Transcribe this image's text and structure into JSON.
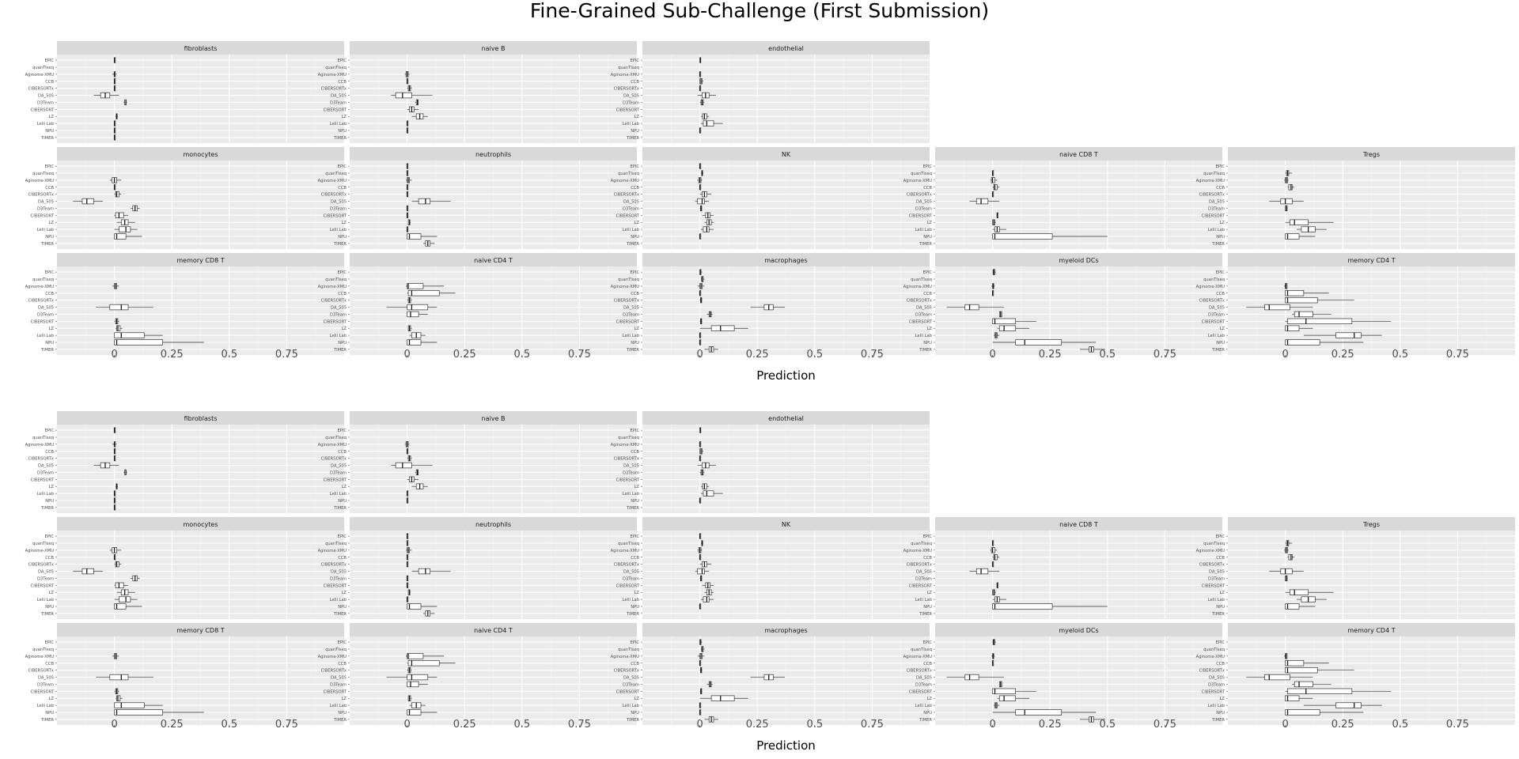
{
  "title": "Fine-Grained Sub-Challenge (First Submission)",
  "chart_data": {
    "type": "boxplot",
    "title": "Fine-Grained Sub-Challenge (First Submission)",
    "xlabel": "Prediction",
    "ylabel": "",
    "x_ticks": [
      0,
      0.25,
      0.5,
      0.75
    ],
    "x_tick_labels": [
      "0",
      "0.25",
      "0.5",
      "0.75"
    ],
    "xlim": [
      -0.25,
      1.0
    ],
    "grid": true,
    "methods": [
      "EPIC",
      "quanTIseq",
      "Aginome-XMU",
      "CCB",
      "CIBERSORTx",
      "DA_505",
      "D3Team",
      "CIBERSORT",
      "LZ",
      "Lelii Lab",
      "NPU",
      "TIMER"
    ],
    "panels": [
      {
        "title": "fibroblasts",
        "row": 0,
        "col": 0,
        "boxes": [
          [
            0,
            0,
            0,
            0,
            0
          ],
          null,
          [
            -0.01,
            0,
            0,
            0,
            0.01
          ],
          [
            0,
            0,
            0,
            0,
            0
          ],
          [
            0,
            0,
            0,
            0,
            0
          ],
          [
            -0.09,
            -0.06,
            -0.04,
            -0.02,
            0.02
          ],
          [
            0.04,
            0.045,
            0.05,
            0.05,
            0.055
          ],
          null,
          [
            0.005,
            0.008,
            0.01,
            0.012,
            0.015
          ],
          [
            0,
            0,
            0,
            0,
            0
          ],
          [
            0,
            0,
            0,
            0,
            0
          ],
          [
            0,
            0,
            0,
            0,
            0
          ]
        ]
      },
      {
        "title": "naive B",
        "row": 0,
        "col": 1,
        "boxes": [
          null,
          null,
          [
            -0.01,
            -0.005,
            0,
            0.005,
            0.01
          ],
          [
            0,
            0,
            0,
            0,
            0
          ],
          [
            0,
            0.005,
            0.01,
            0.015,
            0.02
          ],
          [
            -0.07,
            -0.05,
            -0.02,
            0.02,
            0.11
          ],
          [
            0.035,
            0.04,
            0.045,
            0.048,
            0.05
          ],
          [
            0,
            0.01,
            0.02,
            0.03,
            0.05
          ],
          [
            0.02,
            0.04,
            0.055,
            0.07,
            0.09
          ],
          [
            0,
            0,
            0,
            0,
            0
          ],
          [
            0,
            0,
            0,
            0,
            0
          ],
          null
        ]
      },
      {
        "title": "endothelial",
        "row": 0,
        "col": 2,
        "boxes": [
          [
            0,
            0,
            0.002,
            0.004,
            0.005
          ],
          null,
          [
            0,
            0,
            0,
            0,
            0.005
          ],
          [
            0,
            0,
            0.005,
            0.01,
            0.015
          ],
          [
            0,
            0,
            0,
            0,
            0
          ],
          [
            -0.01,
            0.01,
            0.025,
            0.04,
            0.07
          ],
          [
            0,
            0.005,
            0.01,
            0.015,
            0.02
          ],
          null,
          [
            0.005,
            0.012,
            0.02,
            0.03,
            0.04
          ],
          [
            0.005,
            0.015,
            0.03,
            0.06,
            0.1
          ],
          [
            0,
            0,
            0,
            0,
            0
          ],
          null
        ]
      },
      {
        "title": "monocytes",
        "row": 1,
        "col": 0,
        "boxes": [
          null,
          null,
          [
            -0.02,
            -0.01,
            0,
            0.01,
            0.03
          ],
          [
            0,
            0,
            0,
            0,
            0
          ],
          [
            0,
            0.005,
            0.01,
            0.02,
            0.03
          ],
          [
            -0.18,
            -0.14,
            -0.12,
            -0.09,
            -0.05
          ],
          [
            0.07,
            0.08,
            0.09,
            0.1,
            0.11
          ],
          [
            0,
            0.005,
            0.02,
            0.04,
            0.06
          ],
          [
            0.01,
            0.03,
            0.045,
            0.06,
            0.09
          ],
          [
            0,
            0.02,
            0.05,
            0.07,
            0.1
          ],
          [
            0,
            0,
            0.01,
            0.05,
            0.12
          ],
          null
        ]
      },
      {
        "title": "neutrophils",
        "row": 1,
        "col": 1,
        "boxes": [
          [
            0,
            0,
            0,
            0,
            0
          ],
          [
            0,
            0,
            0,
            0,
            0
          ],
          [
            -0.005,
            0,
            0.005,
            0.01,
            0.02
          ],
          [
            0,
            0,
            0,
            0,
            0
          ],
          [
            0,
            0,
            0,
            0,
            0
          ],
          [
            0.02,
            0.05,
            0.08,
            0.1,
            0.19
          ],
          [
            0,
            0,
            0,
            0,
            0
          ],
          [
            0,
            0,
            0,
            0,
            0
          ],
          [
            0.005,
            0.005,
            0.01,
            0.012,
            0.015
          ],
          [
            0,
            0,
            0,
            0,
            0
          ],
          [
            0,
            0,
            0.01,
            0.06,
            0.13
          ],
          [
            0.07,
            0.08,
            0.09,
            0.1,
            0.12
          ]
        ]
      },
      {
        "title": "NK",
        "row": 1,
        "col": 2,
        "boxes": [
          [
            0,
            0,
            0,
            0,
            0
          ],
          [
            0.005,
            0.008,
            0.01,
            0.012,
            0.015
          ],
          [
            -0.01,
            -0.005,
            0,
            0.005,
            0.01
          ],
          [
            0,
            0,
            0,
            0,
            0
          ],
          [
            0,
            0.01,
            0.02,
            0.03,
            0.05
          ],
          [
            -0.02,
            -0.01,
            0.01,
            0.02,
            0.04
          ],
          [
            0,
            0.003,
            0.005,
            0.008,
            0.01
          ],
          [
            0.01,
            0.025,
            0.035,
            0.045,
            0.06
          ],
          [
            0.02,
            0.03,
            0.04,
            0.05,
            0.06
          ],
          [
            0.005,
            0.015,
            0.03,
            0.04,
            0.06
          ],
          [
            0,
            0,
            0,
            0,
            0
          ],
          null
        ]
      },
      {
        "title": "naive CD8 T",
        "row": 1,
        "col": 3,
        "boxes": [
          null,
          [
            0,
            0,
            0,
            0,
            0
          ],
          [
            -0.01,
            -0.005,
            0,
            0.01,
            0.02
          ],
          [
            0,
            0.005,
            0.01,
            0.02,
            0.03
          ],
          [
            0,
            0,
            0,
            0,
            0
          ],
          [
            -0.1,
            -0.07,
            -0.05,
            -0.02,
            0.03
          ],
          null,
          [
            0.02,
            0.02,
            0.02,
            0.02,
            0.02
          ],
          [
            0,
            0,
            0.005,
            0.01,
            0.015
          ],
          [
            0,
            0.01,
            0.02,
            0.03,
            0.06
          ],
          [
            0,
            0,
            0.01,
            0.26,
            0.5
          ],
          null
        ]
      },
      {
        "title": "Tregs",
        "row": 1,
        "col": 4,
        "boxes": [
          null,
          [
            0,
            0.005,
            0.01,
            0.015,
            0.03
          ],
          [
            -0.005,
            0,
            0.005,
            0.01,
            0.015
          ],
          [
            0.01,
            0.015,
            0.025,
            0.03,
            0.04
          ],
          null,
          [
            -0.07,
            -0.02,
            0,
            0.03,
            0.08
          ],
          [
            0,
            0,
            0.005,
            0.008,
            0.01
          ],
          null,
          [
            0,
            0.02,
            0.04,
            0.1,
            0.21
          ],
          [
            0.05,
            0.07,
            0.1,
            0.13,
            0.18
          ],
          [
            0,
            0,
            0.01,
            0.06,
            0.13
          ],
          null
        ]
      },
      {
        "title": "memory CD8 T",
        "row": 2,
        "col": 0,
        "boxes": [
          null,
          null,
          [
            -0.01,
            0,
            0.005,
            0.01,
            0.02
          ],
          null,
          null,
          [
            -0.08,
            -0.02,
            0.03,
            0.06,
            0.17
          ],
          null,
          [
            0,
            0.005,
            0.01,
            0.015,
            0.02
          ],
          [
            0.005,
            0.01,
            0.015,
            0.025,
            0.035
          ],
          [
            0,
            0,
            0.03,
            0.13,
            0.21
          ],
          [
            0,
            0,
            0.01,
            0.21,
            0.39
          ],
          null
        ]
      },
      {
        "title": "naive CD4 T",
        "row": 2,
        "col": 1,
        "boxes": [
          null,
          null,
          [
            -0.005,
            0,
            0.005,
            0.07,
            0.16
          ],
          [
            0,
            0.005,
            0.02,
            0.14,
            0.21
          ],
          [
            0,
            0.005,
            0.01,
            0.015,
            0.02
          ],
          [
            -0.09,
            0,
            0.02,
            0.09,
            0.13
          ],
          [
            0,
            0,
            0.015,
            0.05,
            0.09
          ],
          null,
          [
            0.005,
            0.005,
            0.01,
            0.015,
            0.02
          ],
          [
            0.01,
            0.02,
            0.04,
            0.06,
            0.08
          ],
          [
            0,
            0,
            0.01,
            0.06,
            0.13
          ],
          null
        ]
      },
      {
        "title": "macrophages",
        "row": 2,
        "col": 2,
        "boxes": [
          [
            0,
            0,
            0.002,
            0.005,
            0.01
          ],
          [
            0.005,
            0.008,
            0.01,
            0.015,
            0.02
          ],
          [
            -0.01,
            0,
            0.005,
            0.01,
            0.02
          ],
          [
            0,
            0,
            0,
            0,
            0
          ],
          [
            0,
            0.003,
            0.005,
            0.008,
            0.01
          ],
          [
            0.22,
            0.28,
            0.3,
            0.32,
            0.37
          ],
          [
            0.03,
            0.04,
            0.045,
            0.05,
            0.055
          ],
          [
            0,
            0.003,
            0.005,
            0.008,
            0.01
          ],
          [
            0,
            0.05,
            0.09,
            0.15,
            0.21
          ],
          [
            0,
            0,
            0,
            0,
            0
          ],
          [
            0,
            0,
            0,
            0,
            0
          ],
          [
            0.02,
            0.04,
            0.05,
            0.06,
            0.08
          ]
        ]
      },
      {
        "title": "myeloid DCs",
        "row": 2,
        "col": 3,
        "boxes": [
          [
            0,
            0.002,
            0.005,
            0.01,
            0.015
          ],
          null,
          [
            -0.005,
            0,
            0.003,
            0.005,
            0.01
          ],
          [
            0,
            0,
            0,
            0,
            0
          ],
          null,
          [
            -0.2,
            -0.12,
            -0.1,
            -0.06,
            0.05
          ],
          [
            0.03,
            0.03,
            0.035,
            0.04,
            0.04
          ],
          [
            0,
            0,
            0.01,
            0.1,
            0.19
          ],
          [
            0.02,
            0.03,
            0.05,
            0.1,
            0.16
          ],
          [
            0.005,
            0.01,
            0.015,
            0.02,
            0.03
          ],
          [
            0,
            0.1,
            0.14,
            0.3,
            0.45
          ],
          [
            0.38,
            0.42,
            0.43,
            0.44,
            0.49
          ]
        ]
      },
      {
        "title": "memory CD4 T",
        "row": 2,
        "col": 4,
        "boxes": [
          null,
          null,
          [
            -0.005,
            0,
            0.003,
            0.008,
            0.01
          ],
          [
            0,
            0,
            0.01,
            0.08,
            0.19
          ],
          [
            0,
            0,
            0.01,
            0.14,
            0.3
          ],
          [
            -0.17,
            -0.09,
            -0.07,
            0.02,
            0.12
          ],
          [
            0.03,
            0.04,
            0.06,
            0.12,
            0.2
          ],
          [
            0,
            0.01,
            0.09,
            0.29,
            0.46
          ],
          [
            0,
            0,
            0.01,
            0.06,
            0.12
          ],
          [
            0.08,
            0.22,
            0.3,
            0.33,
            0.42
          ],
          [
            0,
            0,
            0.01,
            0.15,
            0.34
          ],
          null
        ]
      }
    ]
  }
}
